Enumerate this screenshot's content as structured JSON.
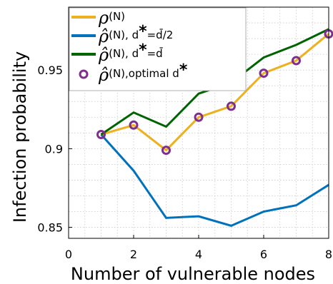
{
  "chart_data": {
    "type": "line",
    "xlabel": "Number of vulnerable nodes",
    "ylabel": "Infection probability",
    "xlim": [
      0,
      8
    ],
    "ylim": [
      0.843,
      0.99
    ],
    "xticks": [
      0,
      2,
      4,
      6,
      8
    ],
    "xtick_labels": [
      "0",
      "2",
      "4",
      "6",
      "8"
    ],
    "yticks": [
      0.85,
      0.9,
      0.95
    ],
    "ytick_labels": [
      "0.85",
      "0.9",
      "0.95"
    ],
    "grid": true,
    "legend_position": "top-left",
    "series": [
      {
        "name": "ρ(N)",
        "legend_parts": [
          "ρ",
          "(N)"
        ],
        "style": "line",
        "color": "#EDB120",
        "x": [
          1,
          2,
          3,
          4,
          5,
          6,
          7,
          8
        ],
        "y": [
          0.909,
          0.915,
          0.899,
          0.92,
          0.927,
          0.948,
          0.956,
          0.973
        ]
      },
      {
        "name": "ρ̂(N), d*=d̄/2",
        "legend_parts": [
          "ρ̂",
          "(N), d",
          "*",
          "=d̄/2"
        ],
        "style": "line",
        "color": "#0072BD",
        "x": [
          1,
          2,
          3,
          4,
          5,
          6,
          7,
          8
        ],
        "y": [
          0.909,
          0.886,
          0.856,
          0.857,
          0.851,
          0.86,
          0.864,
          0.877
        ]
      },
      {
        "name": "ρ̂(N), d*=d̄",
        "legend_parts": [
          "ρ̂",
          "(N), d",
          "*",
          "=d̄"
        ],
        "style": "line",
        "color": "#006400",
        "x": [
          1,
          2,
          3,
          4,
          5,
          6,
          7,
          8
        ],
        "y": [
          0.909,
          0.923,
          0.914,
          0.935,
          0.942,
          0.958,
          0.966,
          0.976
        ]
      },
      {
        "name": "ρ̂(N),optimal d*",
        "legend_parts": [
          "ρ̂",
          "(N),optimal d",
          "*",
          ""
        ],
        "style": "marker",
        "color": "#7E2F8E",
        "x": [
          1,
          2,
          3,
          4,
          5,
          6,
          7,
          8
        ],
        "y": [
          0.909,
          0.915,
          0.899,
          0.92,
          0.927,
          0.948,
          0.956,
          0.973
        ]
      }
    ]
  }
}
